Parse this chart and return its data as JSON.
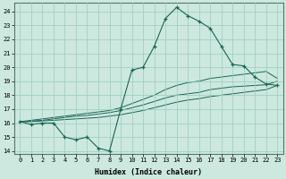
{
  "xlabel": "Humidex (Indice chaleur)",
  "ylabel": "",
  "xlim": [
    -0.5,
    23.5
  ],
  "ylim": [
    13.8,
    24.6
  ],
  "yticks": [
    14,
    15,
    16,
    17,
    18,
    19,
    20,
    21,
    22,
    23,
    24
  ],
  "xticks": [
    0,
    1,
    2,
    3,
    4,
    5,
    6,
    7,
    8,
    9,
    10,
    11,
    12,
    13,
    14,
    15,
    16,
    17,
    18,
    19,
    20,
    21,
    22,
    23
  ],
  "bg_color": "#cce8df",
  "grid_color": "#99ccbb",
  "line_color": "#1a6655",
  "hours": [
    0,
    1,
    2,
    3,
    4,
    5,
    6,
    7,
    8,
    9,
    10,
    11,
    12,
    13,
    14,
    15,
    16,
    17,
    18,
    19,
    20,
    21,
    22,
    23
  ],
  "main_curve": [
    16.1,
    15.9,
    16.0,
    16.0,
    15.0,
    14.8,
    15.0,
    14.2,
    14.0,
    17.0,
    19.8,
    20.0,
    21.5,
    23.5,
    24.3,
    23.7,
    23.3,
    22.8,
    21.5,
    20.2,
    20.1,
    19.3,
    18.8,
    18.7
  ],
  "line1": [
    16.1,
    16.1,
    16.15,
    16.2,
    16.25,
    16.3,
    16.35,
    16.4,
    16.5,
    16.6,
    16.75,
    16.9,
    17.1,
    17.3,
    17.5,
    17.65,
    17.75,
    17.9,
    18.0,
    18.1,
    18.2,
    18.3,
    18.4,
    18.7
  ],
  "line2": [
    16.1,
    16.15,
    16.2,
    16.3,
    16.4,
    16.5,
    16.55,
    16.65,
    16.75,
    16.9,
    17.1,
    17.3,
    17.55,
    17.8,
    18.0,
    18.1,
    18.2,
    18.4,
    18.5,
    18.6,
    18.65,
    18.7,
    18.75,
    19.0
  ],
  "line3": [
    16.1,
    16.2,
    16.3,
    16.4,
    16.5,
    16.6,
    16.7,
    16.8,
    16.9,
    17.1,
    17.4,
    17.7,
    18.0,
    18.4,
    18.7,
    18.9,
    19.0,
    19.2,
    19.3,
    19.4,
    19.5,
    19.6,
    19.7,
    19.2
  ]
}
